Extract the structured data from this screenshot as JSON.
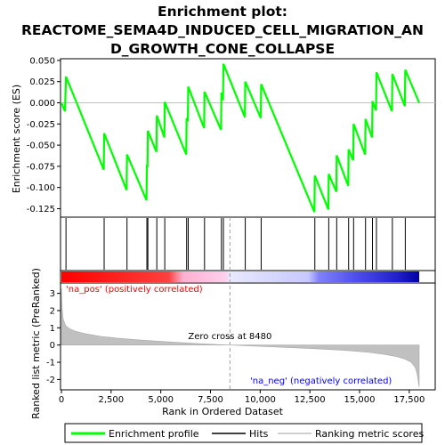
{
  "chart_data": {
    "type": "line",
    "title_lines": [
      "Enrichment plot:",
      "REACTOME_SEMA4D_INDUCED_CELL_MIGRATION_AN",
      "D_GROWTH_CONE_COLLAPSE"
    ],
    "xlabel": "Rank in Ordered Dataset",
    "ylabel_top": "Enrichment score (ES)",
    "ylabel_bottom": "Ranked list metric (PreRanked)",
    "xlim": [
      0,
      18000
    ],
    "x_ticks": [
      0,
      2500,
      5000,
      7500,
      10000,
      12500,
      15000,
      17500
    ],
    "x_tick_labels": [
      "0",
      "2,500",
      "5,000",
      "7,500",
      "10,000",
      "12,500",
      "15,000",
      "17,500"
    ],
    "es_ylim": [
      -0.135,
      0.052
    ],
    "es_ticks": [
      0.05,
      0.025,
      0.0,
      -0.025,
      -0.05,
      -0.075,
      -0.1,
      -0.125
    ],
    "es_tick_labels": [
      "0.050",
      "0.025",
      "0.000",
      "-0.025",
      "-0.050",
      "-0.075",
      "-0.100",
      "-0.125"
    ],
    "metric_ylim": [
      -2.6,
      3.6
    ],
    "metric_ticks": [
      3,
      2,
      1,
      0,
      -1,
      -2
    ],
    "metric_tick_labels": [
      "3",
      "2",
      "1",
      "0",
      "-1",
      "-2"
    ],
    "hits": [
      230,
      2150,
      3300,
      4300,
      4350,
      4800,
      5200,
      6300,
      6380,
      7200,
      8050,
      8150,
      9250,
      10050,
      12750,
      13450,
      13850,
      14450,
      14700,
      15300,
      15650,
      15850,
      16650,
      17300
    ],
    "es_points": [
      [
        0,
        0.0
      ],
      [
        180,
        -0.01
      ],
      [
        230,
        0.031
      ],
      [
        2130,
        -0.079
      ],
      [
        2150,
        -0.036
      ],
      [
        3280,
        -0.103
      ],
      [
        3300,
        -0.061
      ],
      [
        4280,
        -0.115
      ],
      [
        4300,
        -0.073
      ],
      [
        4330,
        -0.076
      ],
      [
        4350,
        -0.033
      ],
      [
        4780,
        -0.058
      ],
      [
        4800,
        -0.015
      ],
      [
        5180,
        -0.041
      ],
      [
        5200,
        0.001
      ],
      [
        6280,
        -0.061
      ],
      [
        6300,
        -0.018
      ],
      [
        6360,
        -0.022
      ],
      [
        6380,
        0.019
      ],
      [
        7180,
        -0.03
      ],
      [
        7200,
        0.013
      ],
      [
        8030,
        -0.032
      ],
      [
        8050,
        0.012
      ],
      [
        8130,
        0.003
      ],
      [
        8150,
        0.046
      ],
      [
        9230,
        -0.017
      ],
      [
        9250,
        0.025
      ],
      [
        10030,
        -0.018
      ],
      [
        10050,
        0.022
      ],
      [
        12730,
        -0.129
      ],
      [
        12750,
        -0.086
      ],
      [
        13430,
        -0.126
      ],
      [
        13450,
        -0.084
      ],
      [
        13830,
        -0.105
      ],
      [
        13850,
        -0.062
      ],
      [
        14430,
        -0.098
      ],
      [
        14450,
        -0.055
      ],
      [
        14680,
        -0.068
      ],
      [
        14700,
        -0.025
      ],
      [
        15280,
        -0.061
      ],
      [
        15300,
        -0.019
      ],
      [
        15630,
        -0.041
      ],
      [
        15650,
        0.002
      ],
      [
        15830,
        -0.009
      ],
      [
        15850,
        0.036
      ],
      [
        16630,
        -0.01
      ],
      [
        16650,
        0.034
      ],
      [
        17280,
        -0.004
      ],
      [
        17300,
        0.039
      ],
      [
        18000,
        0.0
      ]
    ],
    "metric_curve": [
      [
        0,
        3.3
      ],
      [
        30,
        2.2
      ],
      [
        80,
        1.55
      ],
      [
        200,
        1.15
      ],
      [
        400,
        0.95
      ],
      [
        700,
        0.8
      ],
      [
        1200,
        0.66
      ],
      [
        2000,
        0.5
      ],
      [
        3000,
        0.38
      ],
      [
        4000,
        0.29
      ],
      [
        5000,
        0.21
      ],
      [
        6000,
        0.14
      ],
      [
        7000,
        0.08
      ],
      [
        8000,
        0.02
      ],
      [
        8480,
        0.0
      ],
      [
        9500,
        -0.05
      ],
      [
        10500,
        -0.1
      ],
      [
        11500,
        -0.15
      ],
      [
        12500,
        -0.2
      ],
      [
        13500,
        -0.26
      ],
      [
        14500,
        -0.33
      ],
      [
        15500,
        -0.43
      ],
      [
        16300,
        -0.55
      ],
      [
        16900,
        -0.68
      ],
      [
        17300,
        -0.82
      ],
      [
        17600,
        -1.0
      ],
      [
        17800,
        -1.3
      ],
      [
        17900,
        -1.7
      ],
      [
        18000,
        -2.45
      ]
    ],
    "zero_cross": 8480,
    "zero_cross_label": "Zero cross at 8480",
    "pos_label": "'na_pos' (positively correlated)",
    "neg_label": "'na_neg' (negatively correlated)",
    "legend": [
      "Enrichment profile",
      "Hits",
      "Ranking metric scores"
    ],
    "colors": {
      "es_line": "#00ff00",
      "hits": "#000000",
      "metric": "#c0c0c0",
      "zero_cross": "#a0a0a0",
      "pos_text": "#ff0000",
      "neg_text": "#0000ff",
      "bar_stops": [
        "#ff0000",
        "#ff8080",
        "#ffc0e0",
        "#d8d8ff",
        "#8080ff",
        "#2020dd",
        "#0000aa"
      ]
    }
  }
}
